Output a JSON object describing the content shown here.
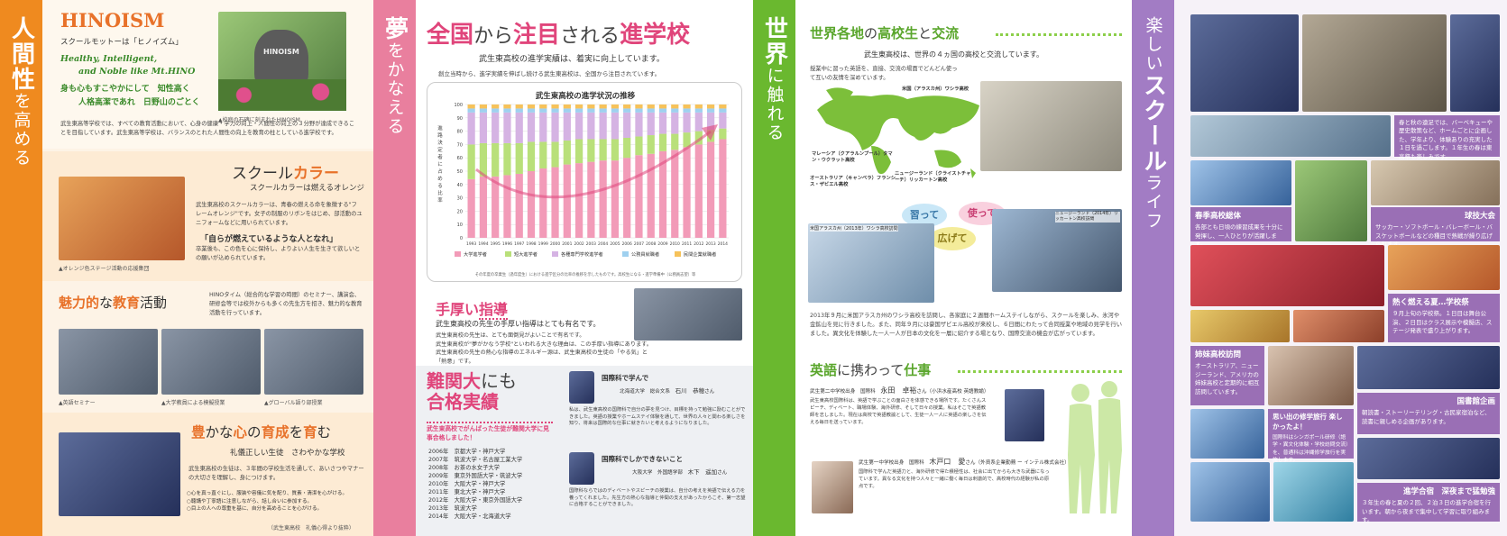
{
  "tabs": {
    "p1": {
      "main": "人間性",
      "rest": "を高める"
    },
    "p2": {
      "main": "夢",
      "rest": "をかなえる"
    },
    "p3": {
      "main": "世界",
      "rest": "に触れる"
    },
    "p4": {
      "main": "楽しい",
      "main2": "スクール",
      "rest": "ライフ"
    }
  },
  "hinoism": {
    "title": "HINOISM",
    "motto": "スクールモットーは「ヒノイズム」",
    "english1": "Healthy, Intelligent,",
    "english2": "and Noble like Mt.HINO",
    "jp1": "身も心もすこやかにして　知性高く",
    "jp2": "人格高潔であれ　日野山のごとく",
    "photo_caption": "▲校庭の石碑に刻まれたHINOISM",
    "stone_text": "HINOISM",
    "body": "武生東高等学校では、すべての教育活動において、心身の健康・学力の向上・人間性の向上の３分野が達成できることを目指しています。武生東高等学校は、バランスのとれた人間性の向上を教育の柱としている進学校です。"
  },
  "color": {
    "title_a": "スクール",
    "title_b": "カラー",
    "subtitle": "スクールカラーは燃えるオレンジ",
    "body1": "武生東高校のスクールカラーは、青春の燃える命を象徴する\"フレームオレンジ\"です。女子の制服のリボンをはじめ、部活動のユニフォームなどに用いられています。",
    "quote": "「自らが燃えているような人となれ」",
    "body2": "卒業後も、この色を心に保持し、よりよい人生を生きて欲しいとの願いが込められています。",
    "caption": "▲オレンジ色ステージ活動の応援集団"
  },
  "attractive": {
    "title_a": "魅力的",
    "title_b": "な",
    "title_c": "教育",
    "title_d": "活動",
    "body": "HINOタイム（総合的な学習の時間）のセミナー、講演会、研修会等では校外からも多くの先生方を招き、魅力的な教育活動を行っています。",
    "cap1": "▲英語セミナー",
    "cap2": "▲大学教員による模擬授業",
    "cap3": "▲グローバル語り部授業"
  },
  "heart": {
    "title_a": "豊",
    "title_b": "かな",
    "title_c": "心",
    "title_d": "の",
    "title_e": "育成",
    "title_f": "を",
    "title_g": "育",
    "title_h": "む",
    "subtitle": "礼儀正しい生徒　さわやかな学校",
    "body": "武生東高校の生徒は、３年間の学校生活を通して、あいさつやマナーの大切さを理解し、身につけます。",
    "rules": [
      "○心を真っ直ぐにし、服装や容儀に気を配り、質素・清潔を心がける。",
      "○聴講や丁寧語に注意しながら、話し合いに参加する。",
      "○目上の人への尊重を基に、自分を高めることを心がける。"
    ],
    "caption": "（武生東高校　礼儀心得より抜粋）"
  },
  "progress": {
    "title_a": "全国",
    "title_b": "から",
    "title_c": "注目",
    "title_d": "される",
    "title_e": "進学校",
    "subtitle": "武生東高校の進学実績は、着実に向上しています。",
    "lead": "創立当時から、進学実績を伸ばし続ける武生東高校は、全国から注目されています。",
    "chart_note": "その年度の卒業生（過年度生）における進学区分の比率の推移を示したものです。高校生になる・進学準備中（公務員志望）等",
    "ylabel_chars": "進路決定者に占める比率"
  },
  "chart_data": {
    "type": "bar",
    "title": "武生東高校の進学状況の推移",
    "ylabel": "進路決定者に占める比率",
    "ylim": [
      0,
      100
    ],
    "yticks": [
      0,
      10,
      20,
      30,
      40,
      50,
      60,
      70,
      80,
      90,
      100
    ],
    "categories": [
      "1993",
      "1994",
      "1995",
      "1996",
      "1997",
      "1998",
      "1999",
      "2000",
      "2001",
      "2002",
      "2003",
      "2004",
      "2005",
      "2006",
      "2007",
      "2008",
      "2009",
      "2010",
      "2011",
      "2012",
      "2013",
      "2014"
    ],
    "series": [
      {
        "name": "大学進学者",
        "color": "#f29bb8",
        "values": [
          44,
          46,
          46,
          47,
          48,
          50,
          52,
          53,
          55,
          56,
          57,
          58,
          58,
          60,
          62,
          63,
          65,
          66,
          68,
          70,
          72,
          74
        ]
      },
      {
        "name": "短大進学者",
        "color": "#b9e07a",
        "values": [
          26,
          25,
          25,
          24,
          23,
          22,
          20,
          19,
          18,
          18,
          17,
          16,
          16,
          15,
          14,
          14,
          13,
          12,
          11,
          10,
          9,
          8
        ]
      },
      {
        "name": "各種専門学校進学者",
        "color": "#d5b3e3",
        "values": [
          24,
          23,
          23,
          23,
          23,
          22,
          22,
          22,
          21,
          20,
          20,
          20,
          20,
          19,
          18,
          17,
          16,
          16,
          15,
          14,
          13,
          12
        ]
      },
      {
        "name": "公務員就職者",
        "color": "#9fd0ef",
        "values": [
          3,
          3,
          3,
          3,
          3,
          3,
          3,
          3,
          3,
          3,
          3,
          3,
          3,
          3,
          3,
          3,
          3,
          3,
          3,
          3,
          3,
          3
        ]
      },
      {
        "name": "民間企業就職者",
        "color": "#f6c25a",
        "values": [
          3,
          3,
          3,
          3,
          3,
          3,
          3,
          3,
          3,
          3,
          3,
          3,
          3,
          3,
          3,
          3,
          3,
          3,
          3,
          3,
          3,
          3
        ]
      }
    ],
    "grid": true,
    "legend": "bottom"
  },
  "guidance": {
    "title_a": "手厚い",
    "title_b": "指導",
    "subtitle": "武生東高校の先生の手厚い指導はとても有名です。",
    "body": "武生東高校の先生は、とても面倒見がよいことで有名です。\n武生東高校が\"夢がかなう学校\"といわれる大きな理由は、この手厚い指導にあります。\n武生東高校の先生の熱心な指導のエネルギー源は、武生東高校の生徒の「やる気」と「熱意」です。"
  },
  "exams": {
    "title_a": "難関大",
    "title_b": "にも",
    "title_c": "合格実績",
    "lead": "武生東高校でがんばった生徒が難関大学に見事合格しました！",
    "rows": [
      {
        "year": "2006年",
        "schools": "京都大学・神戸大学"
      },
      {
        "year": "2007年",
        "schools": "筑波大学・名古屋工業大学"
      },
      {
        "year": "2008年",
        "schools": "お茶の水女子大学"
      },
      {
        "year": "2009年",
        "schools": "東京外国語大学・筑波大学"
      },
      {
        "year": "2010年",
        "schools": "大阪大学・神戸大学"
      },
      {
        "year": "2011年",
        "schools": "東北大学・神戸大学"
      },
      {
        "year": "2012年",
        "schools": "大阪大学・東京外国語大学"
      },
      {
        "year": "2013年",
        "schools": "筑波大学"
      },
      {
        "year": "2014年",
        "schools": "大阪大学・北海道大学"
      }
    ],
    "voice1": {
      "head": "国際科で学んで",
      "school": "北海道大学　総合文系",
      "name": "石川　恭穂",
      "suffix": "さん",
      "body": "私は、武生東高校の国際科で自分の夢を見つけ、目標を持って勉強に励むことができました。英語の授業やホームステイ体験を通して、世界の人々と関わる楽しさを知り、将来は国際的な仕事に就きたいと考えるようになりました。"
    },
    "voice2": {
      "head": "国際科でしかできないこと",
      "school": "大阪大学　外国語学部",
      "name": "木下　遥加",
      "suffix": "さん",
      "body": "国際科ならではのディベートやスピーチの授業は、自分の考えを英語で伝える力を養ってくれました。先生方の熱心な指導と仲間の支えがあったからこそ、第一志望に合格することができました。"
    }
  },
  "world": {
    "title_a": "世界各地",
    "title_b": "の",
    "title_c": "高校生",
    "title_d": "と",
    "title_e": "交流",
    "subtitle": "武生東高校は、世界の４ヵ国の高校と交流しています。",
    "lead": "授業中に習った英語を、直接、交流の場面でどんどん使って互いの友情を深めています。",
    "map_labels": [
      "米国（アラスカ州）ワシラ高校",
      "マレーシア（クアラルンプール）タマン・ウクラット高校",
      "オーストラリア（キャンベラ）フランシス・ザビエル高校",
      "ニュージーランド（クライストチャーチ）リッカートン高校"
    ],
    "bubbles": [
      "習って",
      "使って",
      "広げて"
    ],
    "photo_cap1": "米国アラスカ州（2013年）ワシラ高校訪問",
    "photo_cap2": "ニュージーランド（2014年）リッカートン高校訪問",
    "body": "2013年９月に米国アラスカ州のワシラ高校を訪問し、各家庭に２週間ホームステイしながら、スクールを楽しみ、氷河や金鉱山を見に行きました。また、同年９月には豪国ザビエル高校が来校し、６日間にわたって合同授業や地域の見学を行いました。異文化を体験した一人一人が日本の文化を一層に紹介する場となり、国際交流の機会が広がっています。"
  },
  "english": {
    "title_a": "英語",
    "title_b": "に携わって",
    "title_c": "仕事",
    "p1_head": "武生第二中学校出身　国際科",
    "p1_name": "永田　卓裕",
    "p1_suffix": "さん（小浜水産高校 英語教諭）",
    "p1_body": "武生東高校国際科は、英語で学ぶことの面白さを体感できる場所です。たくさんスピーチ、ディベート、職場体験、海外研修、そして日々の授業。私はそこで英語教師を志しました。現在は高校で英語教諭として、生徒一人一人に英語の楽しさを伝える毎日を送っています。",
    "p2_head": "武生第一中学校出身　国際科",
    "p2_name": "木戸口　愛",
    "p2_suffix": "さん（外資系企業勤務 ー インテル株式会社）",
    "p2_body": "国際科で学んだ英語力と、海外研修で得た積極性は、社会に出てからも大きな武器になっています。異なる文化を持つ人々と一緒に働く毎日は刺激的で、高校時代の経験が私の原点です。"
  },
  "life": {
    "box1": {
      "body": "春と秋の遠足では、バーベキューや歴史散策など、ホームごとに企画した、学年より、体験ありの充実した１日を過ごします。１年生の春は東高祭も楽しみです。"
    },
    "box2": {
      "title": "春季高校総体",
      "body": "各部とも日頃の練習成果を十分に発揮し、一人ひとりが活躍します。"
    },
    "box3": {
      "title": "球技大会",
      "body": "サッカー・ソフトボール・バレーボール・バスケットボールなどの種目で熱戦が繰り広げられます。"
    },
    "box4": {
      "title": "熱く燃える夏…学校祭",
      "body": "９月上旬の学校祭。１日目は舞台公演、２日目はクラス展示や模擬店、ステージ発表で盛り上がります。"
    },
    "box5": {
      "title": "姉妹高校訪問",
      "body": "オーストラリア、ニュージーランド、アメリカの姉妹高校と定期的に相互訪問しています。"
    },
    "box6": {
      "title": "国書館企画",
      "body": "朝読書・ストーリーテリング・古民家宿泊など、読書に親しめる企画があります。"
    },
    "box7": {
      "title": "思い出の修学旅行 楽しかったよ！",
      "body": "国際科はシンガポール研修（語学・異文化体験・学校訪問交流）を、普通科は沖縄修学旅行を実施します。"
    },
    "box8": {
      "title": "進学合宿　深夜まで猛勉強",
      "body": "３年生の春と夏の２回、２泊３日の進学合宿を行います。朝から夜まで集中して学習に取り組みます。"
    }
  }
}
